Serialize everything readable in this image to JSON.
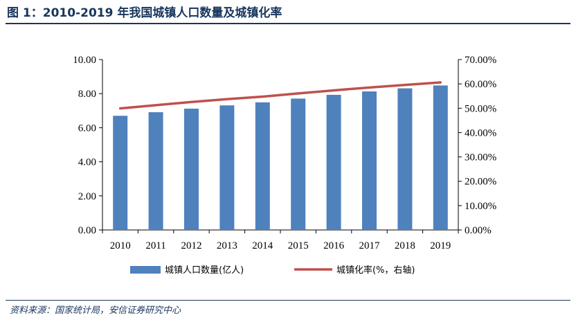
{
  "figure": {
    "title": "图 1：2010-2019 年我国城镇人口数量及城镇化率",
    "source": "资料来源：国家统计局，安信证券研究中心"
  },
  "chart_data": {
    "type": "bar",
    "categories": [
      "2010",
      "2011",
      "2012",
      "2013",
      "2014",
      "2015",
      "2016",
      "2017",
      "2018",
      "2019"
    ],
    "series": [
      {
        "name": "城镇人口数量(亿人)",
        "type": "bar",
        "axis": "left",
        "color": "#4f81bd",
        "values": [
          6.7,
          6.91,
          7.12,
          7.31,
          7.49,
          7.71,
          7.93,
          8.13,
          8.31,
          8.48
        ]
      },
      {
        "name": "城镇化率(%，右轴)",
        "type": "line",
        "axis": "right",
        "color": "#c0504d",
        "values": [
          49.95,
          51.27,
          52.57,
          53.73,
          54.77,
          56.1,
          57.35,
          58.52,
          59.58,
          60.6
        ]
      }
    ],
    "y_left": {
      "min": 0,
      "max": 10,
      "ticks": [
        "0.00",
        "2.00",
        "4.00",
        "6.00",
        "8.00",
        "10.00"
      ]
    },
    "y_right": {
      "min": 0,
      "max": 70,
      "ticks": [
        "0.00%",
        "10.00%",
        "20.00%",
        "30.00%",
        "40.00%",
        "50.00%",
        "60.00%",
        "70.00%"
      ]
    },
    "grid": false,
    "legend_position": "bottom"
  }
}
